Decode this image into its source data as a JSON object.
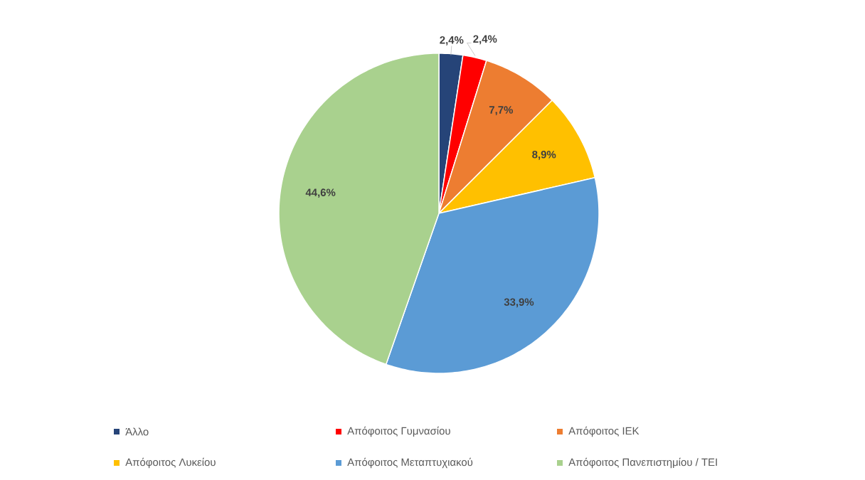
{
  "chart_data": {
    "type": "pie",
    "categories": [
      "Άλλο",
      "Απόφοιτος Γυμνασίου",
      "Απόφοιτος ΙΕΚ",
      "Απόφοιτος Λυκείου",
      "Απόφοιτος Μεταπτυχιακού",
      "Απόφοιτος Πανεπιστημίου / ΤΕΙ"
    ],
    "values": [
      2.4,
      2.4,
      7.7,
      8.9,
      33.9,
      44.6
    ],
    "value_labels": [
      "2,4%",
      "2,4%",
      "7,7%",
      "8,9%",
      "33,9%",
      "44,6%"
    ],
    "colors": [
      "#264478",
      "#ff0000",
      "#ed7d31",
      "#ffc000",
      "#5b9bd5",
      "#a9d18e"
    ],
    "legend": "bottom"
  }
}
